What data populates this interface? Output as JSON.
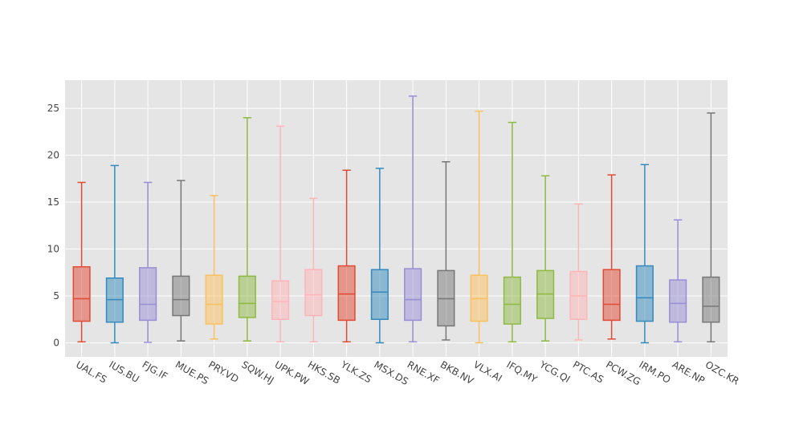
{
  "chart_data": {
    "type": "box",
    "title": "",
    "xlabel": "",
    "ylabel": "",
    "ylim": [
      -1.5,
      28
    ],
    "yticks": [
      0,
      5,
      10,
      15,
      20,
      25
    ],
    "grid": true,
    "background": "#e5e5e5",
    "categories": [
      "UAL.FS",
      "IUS.BU",
      "FJG.IF",
      "MUE.PS",
      "PRY.VD",
      "SQW.HJ",
      "UPK.PW",
      "HKS.SB",
      "YLK.ZS",
      "MSX.DS",
      "RNE.XF",
      "BKB.NV",
      "VLX.AI",
      "IFQ.MY",
      "YCG.QI",
      "PTC.AS",
      "PCW.ZG",
      "IRM.PO",
      "ARE.NP",
      "OZC.KR"
    ],
    "boxes": [
      {
        "min": 0.1,
        "q1": 2.3,
        "median": 4.7,
        "q3": 8.1,
        "max": 17.1,
        "color": "#e24a33"
      },
      {
        "min": 0.0,
        "q1": 2.2,
        "median": 4.6,
        "q3": 6.9,
        "max": 18.9,
        "color": "#348abd"
      },
      {
        "min": 0.05,
        "q1": 2.4,
        "median": 4.1,
        "q3": 8.0,
        "max": 17.1,
        "color": "#988ed5"
      },
      {
        "min": 0.2,
        "q1": 2.9,
        "median": 4.6,
        "q3": 7.1,
        "max": 17.3,
        "color": "#777777"
      },
      {
        "min": 0.4,
        "q1": 2.0,
        "median": 4.1,
        "q3": 7.2,
        "max": 15.7,
        "color": "#fbc15e"
      },
      {
        "min": 0.2,
        "q1": 2.7,
        "median": 4.2,
        "q3": 7.1,
        "max": 24.0,
        "color": "#8eba42"
      },
      {
        "min": 0.1,
        "q1": 2.5,
        "median": 4.4,
        "q3": 6.6,
        "max": 23.1,
        "color": "#ffb5b8"
      },
      {
        "min": 0.1,
        "q1": 2.9,
        "median": 5.1,
        "q3": 7.8,
        "max": 15.4,
        "color": "#ffb5b8"
      },
      {
        "min": 0.1,
        "q1": 2.4,
        "median": 5.2,
        "q3": 8.2,
        "max": 18.4,
        "color": "#e24a33"
      },
      {
        "min": 0.0,
        "q1": 2.5,
        "median": 5.4,
        "q3": 7.8,
        "max": 18.6,
        "color": "#348abd"
      },
      {
        "min": 0.1,
        "q1": 2.4,
        "median": 4.6,
        "q3": 7.9,
        "max": 26.3,
        "color": "#988ed5"
      },
      {
        "min": 0.3,
        "q1": 1.8,
        "median": 4.7,
        "q3": 7.7,
        "max": 19.3,
        "color": "#777777"
      },
      {
        "min": 0.0,
        "q1": 2.3,
        "median": 4.7,
        "q3": 7.2,
        "max": 24.7,
        "color": "#fbc15e"
      },
      {
        "min": 0.1,
        "q1": 2.0,
        "median": 4.1,
        "q3": 7.0,
        "max": 23.5,
        "color": "#8eba42"
      },
      {
        "min": 0.2,
        "q1": 2.6,
        "median": 5.2,
        "q3": 7.7,
        "max": 17.8,
        "color": "#8eba42"
      },
      {
        "min": 0.3,
        "q1": 2.5,
        "median": 5.0,
        "q3": 7.6,
        "max": 14.8,
        "color": "#ffb5b8"
      },
      {
        "min": 0.4,
        "q1": 2.4,
        "median": 4.1,
        "q3": 7.8,
        "max": 17.9,
        "color": "#e24a33"
      },
      {
        "min": 0.0,
        "q1": 2.3,
        "median": 4.8,
        "q3": 8.2,
        "max": 19.0,
        "color": "#348abd"
      },
      {
        "min": 0.1,
        "q1": 2.2,
        "median": 4.2,
        "q3": 6.7,
        "max": 13.1,
        "color": "#988ed5"
      },
      {
        "min": 0.1,
        "q1": 2.2,
        "median": 3.9,
        "q3": 7.0,
        "max": 24.5,
        "color": "#777777"
      }
    ]
  }
}
